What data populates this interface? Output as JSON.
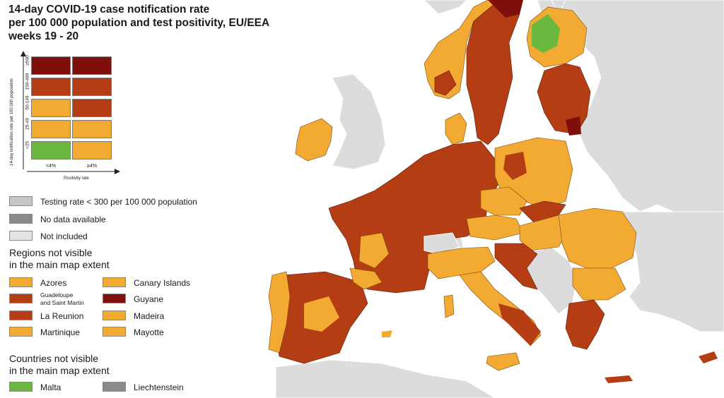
{
  "title_lines": [
    "14-day COVID-19 case notification rate",
    "per 100 000 population and test positivity, EU/EEA",
    "weeks 19 - 20"
  ],
  "colors": {
    "dark_red": "#7f0f0b",
    "red": "#b53d14",
    "orange": "#f2aa32",
    "green": "#6bb83e",
    "grey_testing": "#c6c6c6",
    "grey_nodata": "#8a8a8a",
    "not_included": "#e4e4e4",
    "sea": "#ffffff",
    "land_other": "#dcdcdc"
  },
  "matrix": {
    "y_axis_label": "14-day notification rate per 100 000 population",
    "x_axis_label": "Positivity rate",
    "columns": [
      "<4%",
      "≥4%"
    ],
    "rows": [
      "≥500",
      "150-499",
      "50-149",
      "25-49",
      "<25"
    ],
    "cells": [
      [
        "dark_red",
        "dark_red"
      ],
      [
        "red",
        "red"
      ],
      [
        "orange",
        "red"
      ],
      [
        "orange",
        "orange"
      ],
      [
        "green",
        "orange"
      ]
    ]
  },
  "legend": {
    "testing_rate": "Testing rate < 300 per 100 000 population",
    "no_data": "No data available",
    "not_included": "Not included"
  },
  "regions_header": [
    "Regions not visible",
    "in the main map extent"
  ],
  "regions": [
    {
      "label": "Azores",
      "color": "orange"
    },
    {
      "label": "Canary Islands",
      "color": "orange"
    },
    {
      "label": "Guadeloupe\nand Saint Martin",
      "line1": "Guadeloupe",
      "line2": "and Saint Martin",
      "color": "red"
    },
    {
      "label": "Guyane",
      "color": "dark_red"
    },
    {
      "label": "La Reunion",
      "color": "red"
    },
    {
      "label": "Madeira",
      "color": "orange"
    },
    {
      "label": "Martinique",
      "color": "orange"
    },
    {
      "label": "Mayotte",
      "color": "orange"
    }
  ],
  "countries_header": [
    "Countries not visible",
    "in the main map extent"
  ],
  "countries": [
    {
      "label": "Malta",
      "color": "green"
    },
    {
      "label": "Liechtenstein",
      "color": "grey_nodata"
    }
  ]
}
